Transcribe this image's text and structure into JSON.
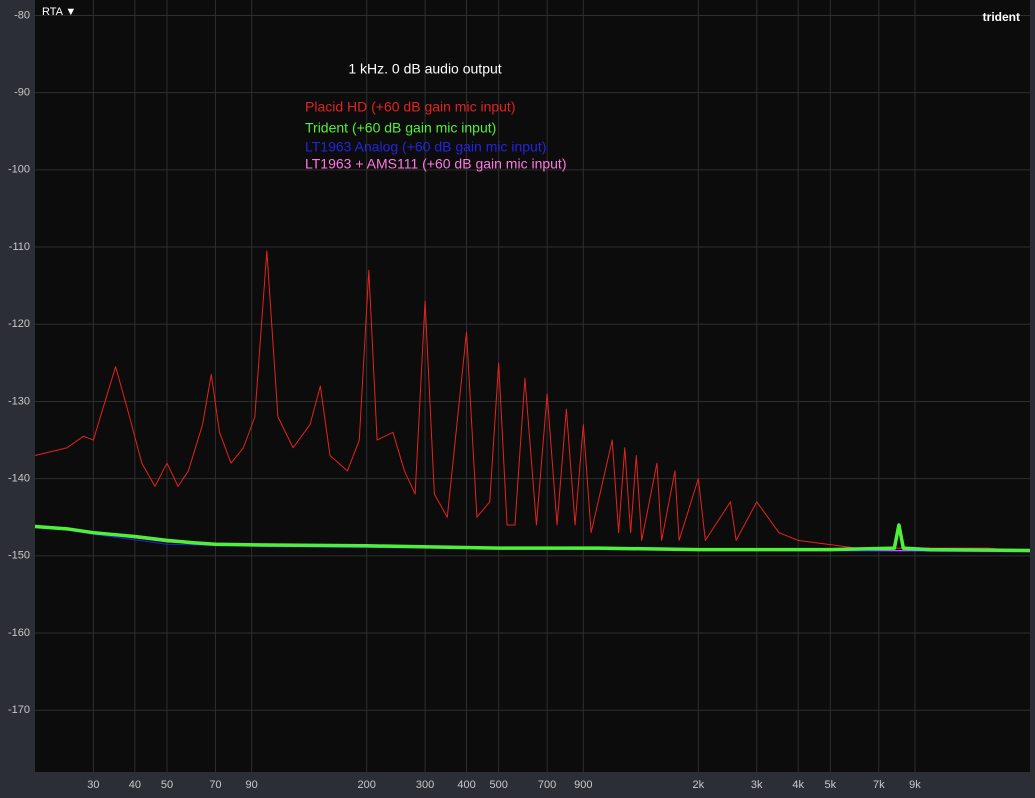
{
  "toolbar": {
    "mode": "RTA ▼",
    "device": "trident"
  },
  "chart_data": {
    "type": "line",
    "title": "1 kHz. 0 dB audio output",
    "xscale": "log",
    "grid": true,
    "xlim": [
      20,
      20000
    ],
    "ylim": [
      -178,
      -78
    ],
    "xticks": [
      30,
      40,
      50,
      70,
      90,
      200,
      300,
      400,
      500,
      700,
      900,
      {
        "value": 2000,
        "label": "2k"
      },
      {
        "value": 3000,
        "label": "3k"
      },
      {
        "value": 4000,
        "label": "4k"
      },
      {
        "value": 5000,
        "label": "5k"
      },
      {
        "value": 7000,
        "label": "7k"
      },
      {
        "value": 9000,
        "label": "9k"
      }
    ],
    "yticks": [
      -80,
      -90,
      -100,
      -110,
      -120,
      -130,
      -140,
      -150,
      -160,
      -170
    ],
    "series": [
      {
        "name": "Placid HD (+60 dB gain mic input)",
        "color": "#e3231f",
        "x": [
          20,
          25,
          28,
          30,
          32,
          35,
          38,
          42,
          46,
          50,
          54,
          58,
          64,
          68,
          72,
          78,
          85,
          92,
          100,
          108,
          120,
          135,
          145,
          155,
          175,
          190,
          203,
          215,
          240,
          260,
          280,
          300,
          320,
          350,
          400,
          430,
          470,
          500,
          530,
          560,
          600,
          650,
          700,
          750,
          800,
          850,
          900,
          950,
          1100,
          1150,
          1200,
          1250,
          1300,
          1350,
          1500,
          1550,
          1700,
          1750,
          2000,
          2100,
          2500,
          2600,
          3000,
          3500,
          4000,
          6000,
          10000,
          15000,
          20000
        ],
        "values": [
          -137,
          -136,
          -134.5,
          -135,
          -131,
          -125.5,
          -131,
          -138,
          -141,
          -138,
          -141,
          -139,
          -133,
          -126.5,
          -134,
          -138,
          -136,
          -132,
          -110.5,
          -132,
          -136,
          -133,
          -128,
          -137,
          -139,
          -135,
          -113,
          -135,
          -134,
          -139,
          -142,
          -117,
          -142,
          -145,
          -121,
          -145,
          -143,
          -125,
          -146,
          -146,
          -127,
          -146,
          -129,
          -146,
          -131,
          -146,
          -133,
          -147,
          -135,
          -147,
          -136,
          -147,
          -137,
          -148,
          -138,
          -148,
          -139,
          -148,
          -140,
          -148,
          -143,
          -148,
          -143,
          -147,
          -148,
          -149,
          -149,
          -149,
          -149.5
        ]
      },
      {
        "name": "Trident (+60 dB gain mic input)",
        "color": "#4ff03a",
        "x": [
          20,
          25,
          30,
          40,
          50,
          60,
          70,
          100,
          200,
          500,
          1000,
          2000,
          5000,
          7800,
          8050,
          8300,
          10000,
          20000
        ],
        "values": [
          -146.2,
          -146.5,
          -147,
          -147.5,
          -148,
          -148.3,
          -148.5,
          -148.6,
          -148.7,
          -149,
          -149,
          -149.2,
          -149.2,
          -149,
          -146,
          -149,
          -149.2,
          -149.3
        ]
      },
      {
        "name": "LT1963 Analog (+60 dB gain mic input)",
        "color": "#2424e0",
        "x": [
          20,
          30,
          50,
          100,
          1000,
          20000
        ],
        "values": [
          -146,
          -147.2,
          -148.5,
          -148.8,
          -149.2,
          -149.5
        ]
      },
      {
        "name": "LT1963 + AMS111 (+60 dB gain mic input)",
        "color": "#ff79e0",
        "x": [
          20,
          30,
          50,
          100,
          1000,
          20000
        ],
        "values": [
          -146.1,
          -147,
          -148.2,
          -148.7,
          -149.1,
          -149.4
        ]
      }
    ]
  }
}
